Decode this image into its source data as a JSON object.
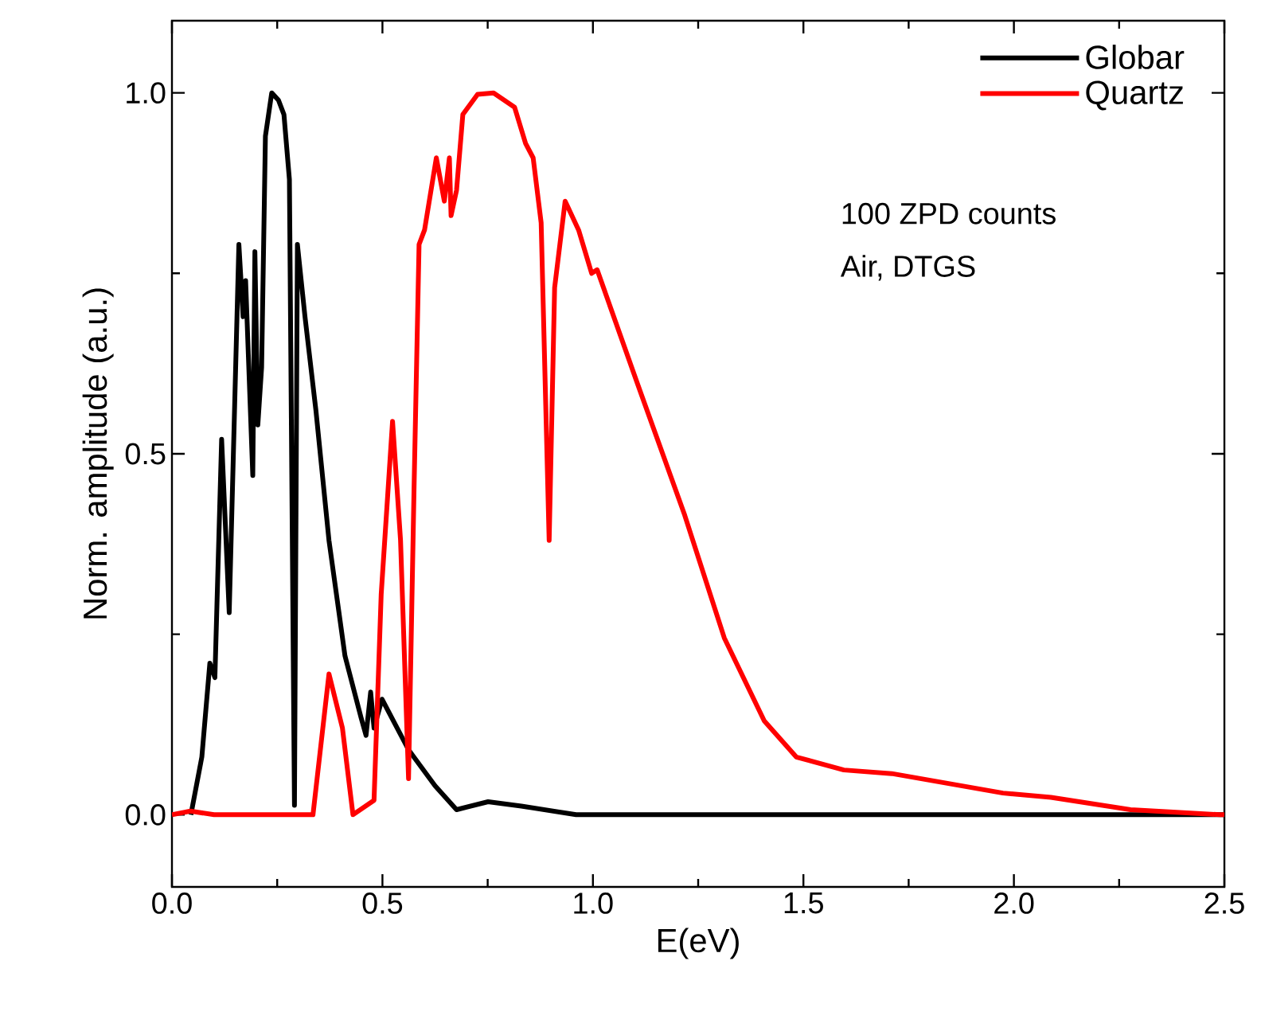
{
  "chart_data": {
    "type": "line",
    "xlabel": "E(eV)",
    "ylabel": "Norm. amplitude (a.u.)",
    "xlim": [
      0,
      2.5
    ],
    "ylim": [
      -0.1,
      1.1
    ],
    "xticks": [
      {
        "value": 0,
        "label": "0.0"
      },
      {
        "value": 0.5,
        "label": "0.5"
      },
      {
        "value": 1,
        "label": "1.0"
      },
      {
        "value": 1.5,
        "label": "1.5"
      },
      {
        "value": 2,
        "label": "2.0"
      },
      {
        "value": 2.5,
        "label": "2.5"
      }
    ],
    "yticks": [
      {
        "value": 0,
        "label": "0.0"
      },
      {
        "value": 0.5,
        "label": "0.5"
      },
      {
        "value": 1,
        "label": "1.0"
      }
    ],
    "legend": "top right",
    "grid": false,
    "marker": "none",
    "line_style": "solid",
    "annotations": [
      "100 ZPD counts",
      "Air, DTGS"
    ],
    "series": [
      {
        "name": "Globar",
        "color": "#000000",
        "x": [
          0.045,
          0.071,
          0.09,
          0.102,
          0.118,
          0.136,
          0.159,
          0.169,
          0.175,
          0.192,
          0.197,
          0.204,
          0.213,
          0.222,
          0.237,
          0.253,
          0.266,
          0.279,
          0.291,
          0.298,
          0.316,
          0.342,
          0.373,
          0.411,
          0.449,
          0.461,
          0.472,
          0.48,
          0.499,
          0.562,
          0.625,
          0.676,
          0.751,
          0.83,
          0.96,
          1.2,
          1.6,
          2.0,
          2.5
        ],
        "values": [
          0.0,
          0.08,
          0.21,
          0.19,
          0.52,
          0.28,
          0.79,
          0.69,
          0.74,
          0.47,
          0.78,
          0.54,
          0.62,
          0.94,
          1.0,
          0.99,
          0.97,
          0.88,
          0.013,
          0.79,
          0.69,
          0.56,
          0.38,
          0.22,
          0.135,
          0.11,
          0.17,
          0.12,
          0.16,
          0.09,
          0.04,
          0.007,
          0.018,
          0.012,
          0.0,
          0.0,
          0.0,
          0.0,
          0.0
        ]
      },
      {
        "name": "Quartz",
        "color": "#ff0000",
        "x": [
          0,
          0.044,
          0.1,
          0.335,
          0.373,
          0.405,
          0.43,
          0.48,
          0.497,
          0.524,
          0.543,
          0.562,
          0.575,
          0.587,
          0.6,
          0.628,
          0.647,
          0.659,
          0.663,
          0.676,
          0.691,
          0.726,
          0.764,
          0.814,
          0.84,
          0.858,
          0.877,
          0.896,
          0.909,
          0.934,
          0.966,
          0.997,
          1.01,
          1.104,
          1.218,
          1.312,
          1.407,
          1.483,
          1.596,
          1.71,
          1.974,
          2.088,
          2.277,
          2.49,
          2.5
        ],
        "values": [
          0,
          0.005,
          0,
          0,
          0.195,
          0.12,
          0,
          0.02,
          0.305,
          0.545,
          0.38,
          0.05,
          0.45,
          0.79,
          0.81,
          0.91,
          0.85,
          0.91,
          0.83,
          0.865,
          0.97,
          0.998,
          1.0,
          0.98,
          0.93,
          0.91,
          0.82,
          0.38,
          0.73,
          0.85,
          0.81,
          0.75,
          0.755,
          0.6,
          0.415,
          0.245,
          0.13,
          0.08,
          0.062,
          0.057,
          0.03,
          0.024,
          0.007,
          0.0,
          0.0
        ]
      }
    ]
  }
}
